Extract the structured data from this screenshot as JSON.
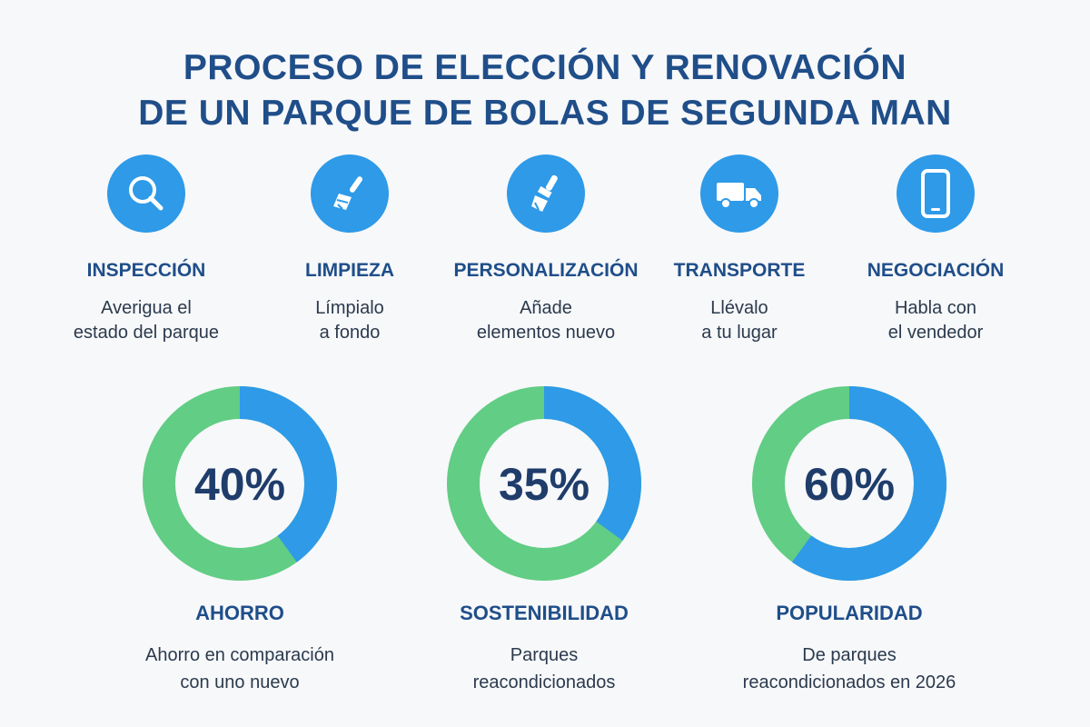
{
  "title": {
    "line1": "PROCESO DE ELECCIÓN Y RENOVACIÓN",
    "line2": "DE UN PARQUE DE BOLAS DE SEGUNDA MAN"
  },
  "steps": [
    {
      "icon": "search-icon",
      "label": "INSPECCIÓN",
      "desc1": "Averigua el",
      "desc2": "estado del parque"
    },
    {
      "icon": "broom-icon",
      "label": "LIMPIEZA",
      "desc1": "Límpialo",
      "desc2": "a fondo"
    },
    {
      "icon": "paintbrush-icon",
      "label": "PERSONALIZACIÓN",
      "desc1": "Añade",
      "desc2": "elementos nuevo"
    },
    {
      "icon": "truck-icon",
      "label": "TRANSPORTE",
      "desc1": "Llévalo",
      "desc2": "a tu lugar"
    },
    {
      "icon": "phone-icon",
      "label": "NEGOCIACIÓN",
      "desc1": "Habla con",
      "desc2": "el vendedor"
    }
  ],
  "colors": {
    "blue": "#2e9ae8",
    "green": "#62cd84",
    "text": "#1f4e89"
  },
  "chart_data": [
    {
      "type": "pie",
      "value": 40,
      "percent_label": "40%",
      "label": "AHORRO",
      "desc1": "Ahorro en comparación",
      "desc2": "con uno nuevo"
    },
    {
      "type": "pie",
      "value": 35,
      "percent_label": "35%",
      "label": "SOSTENIBILIDAD",
      "desc1": "Parques",
      "desc2": "reacondicionados"
    },
    {
      "type": "pie",
      "value": 60,
      "percent_label": "60%",
      "label": "POPULARIDAD",
      "desc1": "De parques",
      "desc2": "reacondicionados en 2026"
    }
  ]
}
